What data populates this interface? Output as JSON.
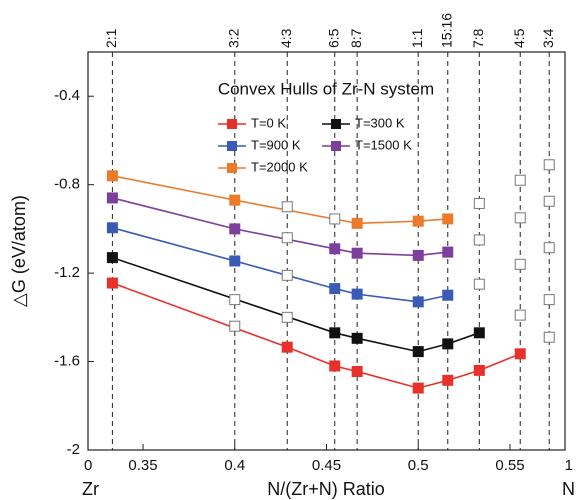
{
  "chart_data": {
    "type": "line",
    "title": "Convex Hulls of Zr-N system",
    "y_label": "△G (eV/atom)",
    "x_label": "N/(Zr+N)  Ratio",
    "x_end_labels": [
      {
        "tick": "0",
        "element": "Zr"
      },
      {
        "tick": "1",
        "element": "N"
      }
    ],
    "xlim": [
      0.32,
      0.58
    ],
    "xticks": [
      0.35,
      0.4,
      0.45,
      0.5,
      0.55
    ],
    "ylim": [
      -2,
      -0.2
    ],
    "yticks": [
      -2,
      -1.6,
      -1.2,
      -0.8,
      -0.4
    ],
    "ratios": [
      "2:1",
      "3:2",
      "4:3",
      "6:5",
      "8:7",
      "1:1",
      "15:16",
      "7:8",
      "4:5",
      "3:4"
    ],
    "x": [
      0.3333,
      0.4,
      0.4286,
      0.4545,
      0.4667,
      0.5,
      0.5161,
      0.5333,
      0.5556,
      0.5714
    ],
    "legend_columns": 2,
    "series": [
      {
        "name": "T=0 K",
        "color": "#e8312a",
        "values": [
          -1.245,
          -1.44,
          -1.535,
          -1.62,
          -1.645,
          -1.72,
          -1.685,
          -1.64,
          -1.565,
          -1.49
        ],
        "on_hull": [
          true,
          false,
          true,
          true,
          true,
          true,
          true,
          true,
          true,
          false
        ]
      },
      {
        "name": "T=300 K",
        "color": "#111111",
        "values": [
          -1.13,
          -1.32,
          -1.4,
          -1.47,
          -1.495,
          -1.555,
          -1.52,
          -1.47,
          -1.39,
          -1.32
        ],
        "on_hull": [
          true,
          false,
          false,
          true,
          true,
          true,
          true,
          true,
          false,
          false
        ]
      },
      {
        "name": "T=900 K",
        "color": "#3a5bb5",
        "values": [
          -0.995,
          -1.145,
          -1.21,
          -1.27,
          -1.295,
          -1.33,
          -1.3,
          -1.25,
          -1.16,
          -1.085
        ],
        "on_hull": [
          true,
          true,
          false,
          true,
          true,
          true,
          true,
          false,
          false,
          false
        ]
      },
      {
        "name": "T=1500 K",
        "color": "#7d3f9b",
        "values": [
          -0.86,
          -1.0,
          -1.04,
          -1.09,
          -1.11,
          -1.12,
          -1.105,
          -1.05,
          -0.95,
          -0.875
        ],
        "on_hull": [
          true,
          true,
          false,
          true,
          true,
          true,
          true,
          false,
          false,
          false
        ]
      },
      {
        "name": "T=2000 K",
        "color": "#ec7a2c",
        "values": [
          -0.76,
          -0.87,
          -0.9,
          -0.955,
          -0.975,
          -0.965,
          -0.955,
          -0.885,
          -0.78,
          -0.71
        ],
        "on_hull": [
          true,
          true,
          false,
          false,
          true,
          true,
          true,
          false,
          false,
          false
        ]
      }
    ]
  }
}
